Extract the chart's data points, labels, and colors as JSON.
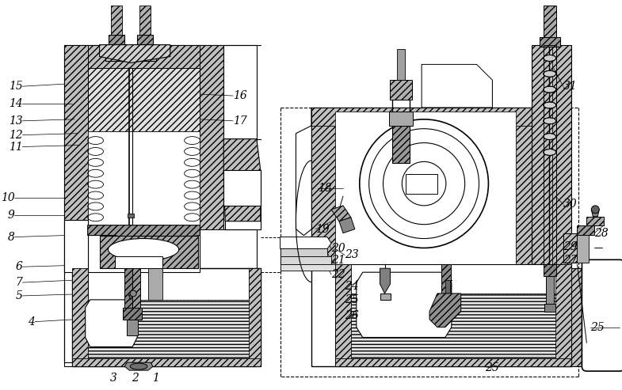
{
  "bg_color": "#ffffff",
  "fig_width": 7.85,
  "fig_height": 4.93,
  "dpi": 100,
  "annotation_fontsize": 10,
  "labels": [
    [
      "15",
      22,
      108,
      "right"
    ],
    [
      "14",
      22,
      130,
      "right"
    ],
    [
      "13",
      22,
      152,
      "right"
    ],
    [
      "12",
      22,
      170,
      "right"
    ],
    [
      "11",
      22,
      185,
      "right"
    ],
    [
      "10",
      12,
      250,
      "right"
    ],
    [
      "9",
      12,
      272,
      "right"
    ],
    [
      "8",
      12,
      300,
      "right"
    ],
    [
      "7",
      22,
      358,
      "right"
    ],
    [
      "6",
      22,
      338,
      "right"
    ],
    [
      "5",
      22,
      375,
      "right"
    ],
    [
      "4",
      38,
      408,
      "right"
    ],
    [
      "3",
      138,
      480,
      "center"
    ],
    [
      "2",
      165,
      480,
      "center"
    ],
    [
      "1",
      192,
      480,
      "center"
    ],
    [
      "16",
      290,
      120,
      "left"
    ],
    [
      "17",
      290,
      152,
      "left"
    ],
    [
      "18",
      398,
      238,
      "left"
    ],
    [
      "19",
      395,
      290,
      "left"
    ],
    [
      "20",
      415,
      315,
      "left"
    ],
    [
      "21",
      415,
      330,
      "left"
    ],
    [
      "22",
      415,
      348,
      "left"
    ],
    [
      "23",
      432,
      323,
      "left"
    ],
    [
      "24",
      432,
      363,
      "left"
    ],
    [
      "25",
      432,
      380,
      "left"
    ],
    [
      "26",
      432,
      400,
      "left"
    ],
    [
      "25",
      620,
      467,
      "center"
    ],
    [
      "25",
      745,
      415,
      "left"
    ],
    [
      "27",
      710,
      330,
      "left"
    ],
    [
      "28",
      750,
      295,
      "left"
    ],
    [
      "29",
      710,
      313,
      "left"
    ],
    [
      "30",
      710,
      258,
      "left"
    ],
    [
      "31",
      710,
      108,
      "left"
    ]
  ]
}
